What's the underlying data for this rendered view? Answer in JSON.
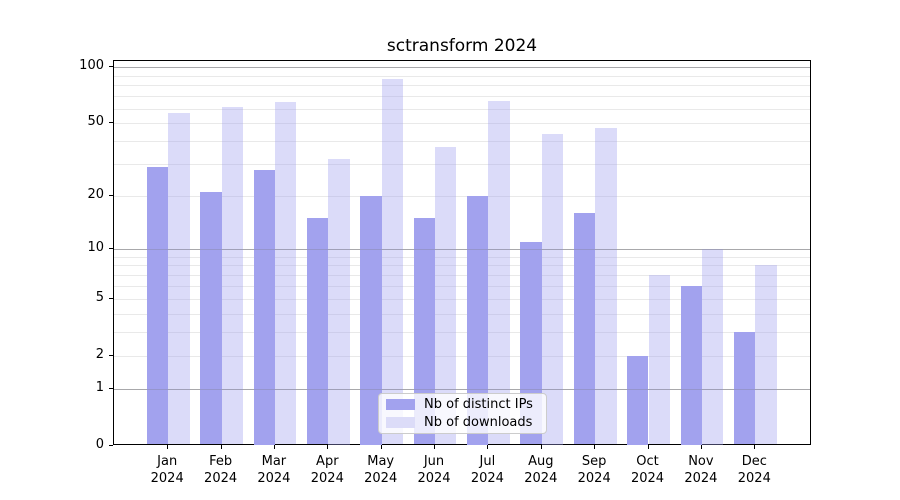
{
  "title": "sctransform 2024",
  "chart_data": {
    "type": "bar",
    "title": "sctransform 2024",
    "categories": [
      "Jan 2024",
      "Feb 2024",
      "Mar 2024",
      "Apr 2024",
      "May 2024",
      "Jun 2024",
      "Jul 2024",
      "Aug 2024",
      "Sep 2024",
      "Oct 2024",
      "Nov 2024",
      "Dec 2024"
    ],
    "x_tick_months": [
      "Jan",
      "Feb",
      "Mar",
      "Apr",
      "May",
      "Jun",
      "Jul",
      "Aug",
      "Sep",
      "Oct",
      "Nov",
      "Dec"
    ],
    "x_tick_year": "2024",
    "series": [
      {
        "name": "Nb of distinct IPs",
        "color": "#a2a2ee",
        "fill_css": "#a2a2ee",
        "values": [
          29,
          21,
          28,
          15,
          20,
          15,
          20,
          11,
          16,
          2,
          6,
          3
        ]
      },
      {
        "name": "Nb of downloads",
        "color": "#dcdcf8",
        "fill_css": "rgba(160,160,238,0.38)",
        "values": [
          57,
          61,
          65,
          32,
          87,
          37,
          66,
          44,
          47,
          7,
          10,
          8
        ]
      }
    ],
    "xlabel": "",
    "ylabel": "",
    "y_scale": "log10(1+x)",
    "y_ticks": [
      0,
      1,
      2,
      5,
      10,
      20,
      50,
      100
    ],
    "y_major_gridlines": [
      1,
      10,
      100
    ],
    "y_minor_gridlines": [
      2,
      3,
      4,
      5,
      6,
      7,
      8,
      9,
      20,
      30,
      40,
      50,
      60,
      70,
      80,
      90
    ],
    "ylim": [
      0,
      108
    ],
    "grid": "on",
    "legend_position": "bottom-center"
  },
  "legend": {
    "items": [
      {
        "label": "Nb of distinct IPs",
        "color": "#a2a2ee"
      },
      {
        "label": "Nb of downloads",
        "color": "#dcdcf8"
      }
    ]
  }
}
